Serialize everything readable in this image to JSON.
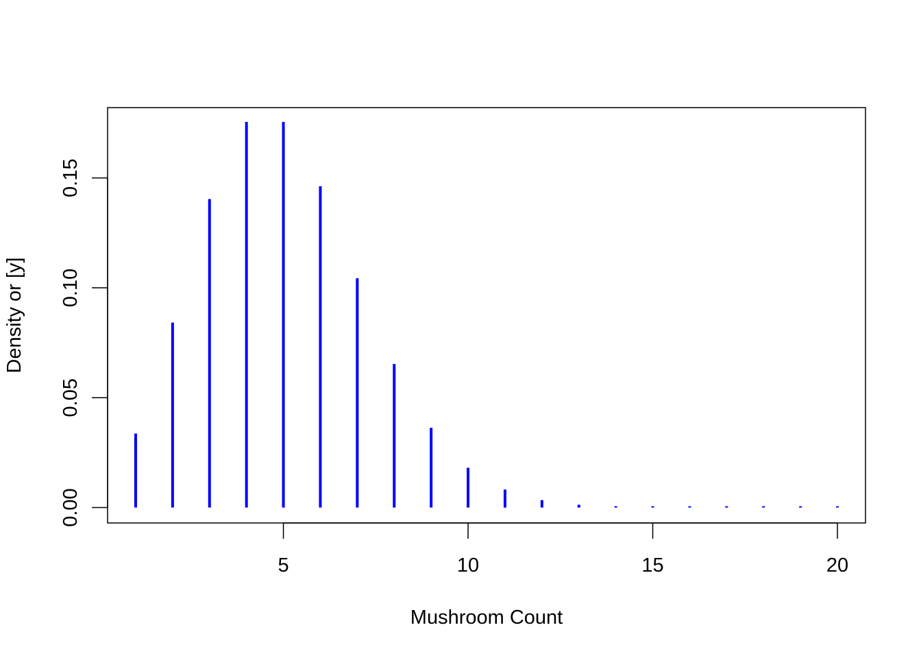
{
  "chart_data": {
    "type": "bar",
    "style": "histogram-spikes",
    "title": "",
    "xlabel": "Mushroom Count",
    "ylabel": "Density or [y]",
    "x": [
      1,
      2,
      3,
      4,
      5,
      6,
      7,
      8,
      9,
      10,
      11,
      12,
      13,
      14,
      15,
      16,
      17,
      18,
      19,
      20
    ],
    "values": [
      0.0337,
      0.0842,
      0.1404,
      0.1755,
      0.1755,
      0.1462,
      0.1044,
      0.0653,
      0.0363,
      0.0181,
      0.0082,
      0.0034,
      0.0013,
      0.0005,
      0.0002,
      0.0001,
      0.0,
      0.0,
      0.0,
      0.0
    ],
    "xlim": [
      0.24,
      20.76
    ],
    "ylim": [
      -0.007,
      0.182
    ],
    "x_ticks": [
      5,
      10,
      15,
      20
    ],
    "x_tick_labels": [
      "5",
      "10",
      "15",
      "20"
    ],
    "y_ticks": [
      0,
      0.05,
      0.1,
      0.15
    ],
    "y_tick_labels": [
      "0.00",
      "0.05",
      "0.10",
      "0.15"
    ],
    "grid": false,
    "legend": "none",
    "color": "#0000ff"
  }
}
